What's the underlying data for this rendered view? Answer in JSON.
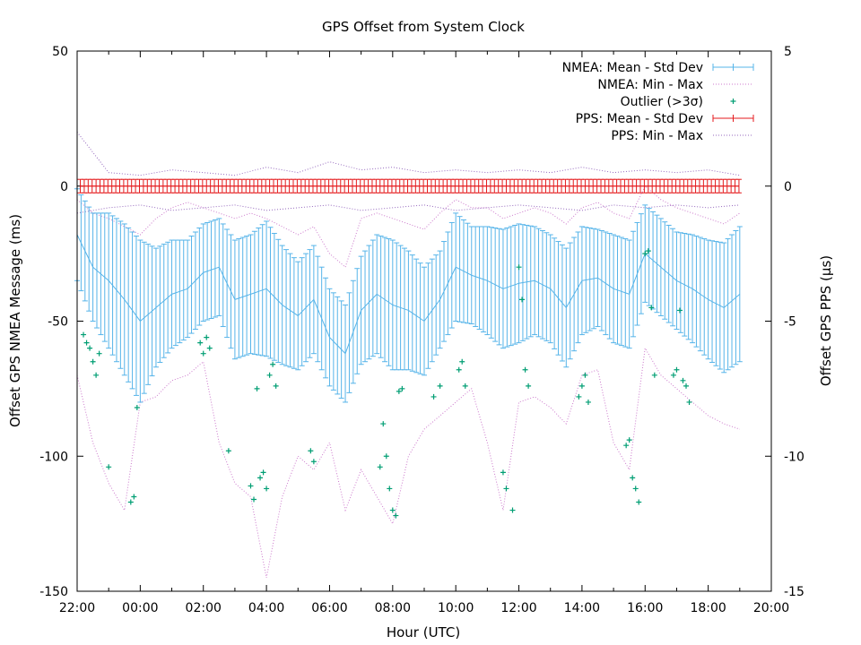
{
  "chart_data": {
    "type": "line",
    "title": "GPS Offset from System Clock",
    "xlabel": "Hour (UTC)",
    "ylabel": "Offset GPS NMEA Message (ms)",
    "y2label": "Offset GPS PPS (µs)",
    "x_range_hours": [
      -2,
      20
    ],
    "x_ticks": [
      "22:00",
      "00:00",
      "02:00",
      "04:00",
      "06:00",
      "08:00",
      "10:00",
      "12:00",
      "14:00",
      "16:00",
      "18:00",
      "20:00"
    ],
    "x_tick_values_hours": [
      -2,
      0,
      2,
      4,
      6,
      8,
      10,
      12,
      14,
      16,
      18,
      20
    ],
    "ylim": [
      -150,
      50
    ],
    "y_ticks": [
      "50",
      "0",
      "-50",
      "-100",
      "-150"
    ],
    "y_tick_values": [
      50,
      0,
      -50,
      -100,
      -150
    ],
    "y2lim": [
      -15,
      5
    ],
    "y2_ticks": [
      "5",
      "0",
      "-5",
      "-10",
      "-15"
    ],
    "y2_tick_values": [
      5,
      0,
      -5,
      -10,
      -15
    ],
    "legend_position": "top-right",
    "colors": {
      "nmea": "#56b4e9",
      "nmea_minmax": "#cc79cc",
      "outlier": "#009e73",
      "pps": "#e41a1c",
      "pps_minmax": "#9467bd"
    },
    "series": [
      {
        "name": "NMEA: Mean - Std Dev",
        "kind": "errorbar",
        "axis": "y",
        "x_hours": [
          -2.0,
          -1.5,
          -1.0,
          -0.5,
          0.0,
          0.5,
          1.0,
          1.5,
          2.0,
          2.5,
          3.0,
          3.5,
          4.0,
          4.5,
          5.0,
          5.5,
          6.0,
          6.5,
          7.0,
          7.5,
          8.0,
          8.5,
          9.0,
          9.5,
          10.0,
          10.5,
          11.0,
          11.5,
          12.0,
          12.5,
          13.0,
          13.5,
          14.0,
          14.5,
          15.0,
          15.5,
          16.0,
          16.5,
          17.0,
          17.5,
          18.0,
          18.5,
          19.0
        ],
        "mean": [
          -18,
          -30,
          -35,
          -42,
          -50,
          -45,
          -40,
          -38,
          -32,
          -30,
          -42,
          -40,
          -38,
          -44,
          -48,
          -42,
          -56,
          -62,
          -46,
          -40,
          -44,
          -46,
          -50,
          -42,
          -30,
          -33,
          -35,
          -38,
          -36,
          -35,
          -38,
          -45,
          -35,
          -34,
          -38,
          -40,
          -25,
          -30,
          -35,
          -38,
          -42,
          -45,
          -40
        ],
        "std": [
          17,
          20,
          25,
          28,
          30,
          22,
          20,
          18,
          18,
          18,
          22,
          22,
          25,
          22,
          20,
          20,
          18,
          18,
          20,
          22,
          24,
          22,
          20,
          18,
          20,
          18,
          20,
          22,
          22,
          20,
          20,
          22,
          20,
          18,
          20,
          20,
          18,
          18,
          18,
          20,
          22,
          24,
          25
        ]
      },
      {
        "name": "NMEA: Min - Max",
        "kind": "range",
        "axis": "y",
        "x_hours": [
          -2.0,
          -1.5,
          -1.0,
          -0.5,
          0.0,
          0.5,
          1.0,
          1.5,
          2.0,
          2.5,
          3.0,
          3.5,
          4.0,
          4.5,
          5.0,
          5.5,
          6.0,
          6.5,
          7.0,
          7.5,
          8.0,
          8.5,
          9.0,
          9.5,
          10.0,
          10.5,
          11.0,
          11.5,
          12.0,
          12.5,
          13.0,
          13.5,
          14.0,
          14.5,
          15.0,
          15.5,
          16.0,
          16.5,
          17.0,
          17.5,
          18.0,
          18.5,
          19.0
        ],
        "min": [
          -70,
          -95,
          -110,
          -120,
          -80,
          -78,
          -72,
          -70,
          -65,
          -95,
          -110,
          -115,
          -145,
          -115,
          -100,
          -105,
          -95,
          -120,
          -105,
          -115,
          -125,
          -100,
          -90,
          -85,
          -80,
          -75,
          -95,
          -120,
          -80,
          -78,
          -82,
          -88,
          -70,
          -68,
          -95,
          -105,
          -60,
          -70,
          -75,
          -80,
          -85,
          -88,
          -90
        ],
        "max": [
          -5,
          -10,
          -12,
          -15,
          -18,
          -12,
          -8,
          -6,
          -8,
          -10,
          -12,
          -10,
          -12,
          -15,
          -18,
          -15,
          -25,
          -30,
          -12,
          -10,
          -12,
          -14,
          -16,
          -10,
          -5,
          -8,
          -8,
          -12,
          -10,
          -8,
          -10,
          -14,
          -8,
          -6,
          -10,
          -12,
          0,
          -5,
          -8,
          -10,
          -12,
          -14,
          -10
        ]
      },
      {
        "name": "Outlier (>3σ)",
        "kind": "points",
        "axis": "y",
        "points": [
          [
            -1.8,
            -55
          ],
          [
            -1.7,
            -58
          ],
          [
            -1.6,
            -60
          ],
          [
            -1.5,
            -65
          ],
          [
            -1.4,
            -70
          ],
          [
            -1.3,
            -62
          ],
          [
            -1.0,
            -104
          ],
          [
            -0.3,
            -117
          ],
          [
            -0.2,
            -115
          ],
          [
            -0.1,
            -82
          ],
          [
            1.9,
            -58
          ],
          [
            2.0,
            -62
          ],
          [
            2.1,
            -56
          ],
          [
            2.2,
            -60
          ],
          [
            2.8,
            -98
          ],
          [
            3.5,
            -111
          ],
          [
            3.6,
            -116
          ],
          [
            3.7,
            -75
          ],
          [
            3.8,
            -108
          ],
          [
            3.9,
            -106
          ],
          [
            4.0,
            -112
          ],
          [
            4.1,
            -70
          ],
          [
            4.2,
            -66
          ],
          [
            4.3,
            -74
          ],
          [
            5.4,
            -98
          ],
          [
            5.5,
            -102
          ],
          [
            7.6,
            -104
          ],
          [
            7.7,
            -88
          ],
          [
            7.8,
            -100
          ],
          [
            7.9,
            -112
          ],
          [
            8.0,
            -120
          ],
          [
            8.1,
            -122
          ],
          [
            8.2,
            -76
          ],
          [
            8.3,
            -75
          ],
          [
            9.3,
            -78
          ],
          [
            9.5,
            -74
          ],
          [
            10.1,
            -68
          ],
          [
            10.2,
            -65
          ],
          [
            10.3,
            -74
          ],
          [
            11.5,
            -106
          ],
          [
            11.6,
            -112
          ],
          [
            11.8,
            -120
          ],
          [
            12.0,
            -30
          ],
          [
            12.1,
            -42
          ],
          [
            12.2,
            -68
          ],
          [
            12.3,
            -74
          ],
          [
            13.9,
            -78
          ],
          [
            14.0,
            -74
          ],
          [
            14.1,
            -70
          ],
          [
            14.2,
            -80
          ],
          [
            15.4,
            -96
          ],
          [
            15.5,
            -94
          ],
          [
            15.6,
            -108
          ],
          [
            15.7,
            -112
          ],
          [
            15.8,
            -117
          ],
          [
            16.0,
            -25
          ],
          [
            16.1,
            -24
          ],
          [
            16.2,
            -45
          ],
          [
            16.3,
            -70
          ],
          [
            16.9,
            -70
          ],
          [
            17.0,
            -68
          ],
          [
            17.1,
            -46
          ],
          [
            17.2,
            -72
          ],
          [
            17.3,
            -74
          ],
          [
            17.4,
            -80
          ]
        ]
      },
      {
        "name": "PPS: Mean - Std Dev",
        "kind": "errorbar",
        "axis": "y2",
        "x_start_hours": -1.9,
        "x_end_hours": 19.0,
        "mean": 0.0,
        "std": 0.25
      },
      {
        "name": "PPS: Min - Max",
        "kind": "range",
        "axis": "y2",
        "x_hours": [
          -2.0,
          -1.0,
          0.0,
          1.0,
          2.0,
          3.0,
          4.0,
          5.0,
          6.0,
          7.0,
          8.0,
          9.0,
          10.0,
          11.0,
          12.0,
          13.0,
          14.0,
          15.0,
          16.0,
          17.0,
          18.0,
          19.0
        ],
        "min": [
          -1.0,
          -0.8,
          -0.7,
          -0.9,
          -0.8,
          -0.7,
          -0.9,
          -0.8,
          -0.7,
          -0.9,
          -0.8,
          -0.7,
          -0.9,
          -0.8,
          -0.7,
          -0.8,
          -0.9,
          -0.7,
          -0.8,
          -0.7,
          -0.8,
          -0.7
        ],
        "max": [
          2.0,
          0.5,
          0.4,
          0.6,
          0.5,
          0.4,
          0.7,
          0.5,
          0.9,
          0.6,
          0.7,
          0.5,
          0.6,
          0.5,
          0.6,
          0.5,
          0.7,
          0.5,
          0.6,
          0.5,
          0.6,
          0.4
        ]
      }
    ]
  }
}
